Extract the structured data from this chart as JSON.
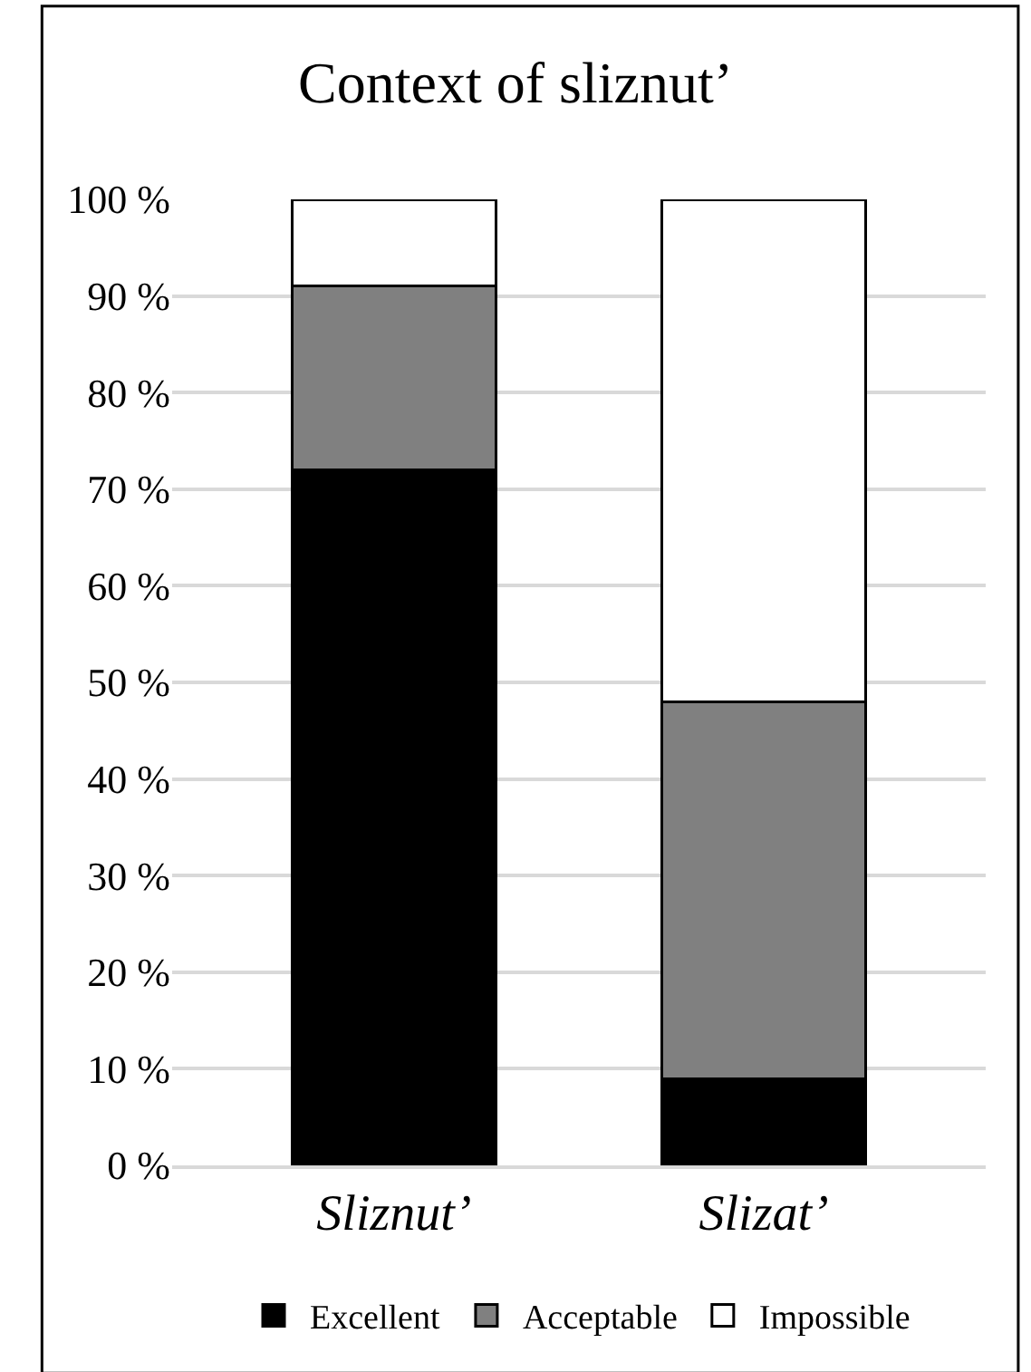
{
  "chart_data": {
    "type": "bar",
    "title": "Context of sliznut’",
    "stacked": true,
    "categories": [
      "Sliznut’",
      "Slizat’"
    ],
    "series": [
      {
        "name": "Excellent",
        "color": "#000000",
        "values": [
          72,
          9
        ]
      },
      {
        "name": "Acceptable",
        "color": "#808080",
        "values": [
          19,
          39
        ]
      },
      {
        "name": "Impossible",
        "color": "#ffffff",
        "values": [
          9,
          52
        ]
      }
    ],
    "ylim": [
      0,
      100
    ],
    "yticks": [
      {
        "value": 0,
        "label": "0 %"
      },
      {
        "value": 10,
        "label": "10 %"
      },
      {
        "value": 20,
        "label": "20 %"
      },
      {
        "value": 30,
        "label": "30 %"
      },
      {
        "value": 40,
        "label": "40 %"
      },
      {
        "value": 50,
        "label": "50 %"
      },
      {
        "value": 60,
        "label": "60 %"
      },
      {
        "value": 70,
        "label": "70 %"
      },
      {
        "value": 80,
        "label": "80 %"
      },
      {
        "value": 90,
        "label": "90 %"
      },
      {
        "value": 100,
        "label": "100 %"
      }
    ],
    "grid": "y",
    "legend": "bottom"
  }
}
